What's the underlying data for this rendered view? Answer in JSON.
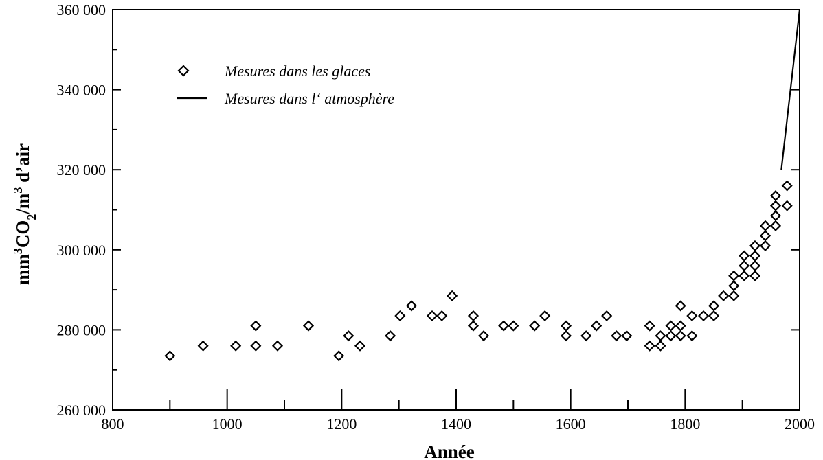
{
  "chart_data": {
    "type": "scatter",
    "title": "",
    "xlabel": "Année",
    "ylabel": {
      "parts": [
        {
          "text": "mm"
        },
        {
          "text": "3",
          "sup": true
        },
        {
          "text": "CO"
        },
        {
          "text": "2",
          "sub": true
        },
        {
          "text": "/m"
        },
        {
          "text": "3",
          "sup": true
        },
        {
          "text": " d’air"
        }
      ]
    },
    "xlim": [
      800,
      2000
    ],
    "ylim": [
      260000,
      360000
    ],
    "x_ticks": [
      800,
      1000,
      1200,
      1400,
      1600,
      1800,
      2000
    ],
    "x_tick_labels": [
      "800",
      "1000",
      "1200",
      "1400",
      "1600",
      "1800",
      "2000"
    ],
    "y_ticks": [
      260000,
      280000,
      300000,
      320000,
      340000,
      360000
    ],
    "y_tick_labels": [
      "260 000",
      "280 000",
      "300 000",
      "320 000",
      "340 000",
      "360 000"
    ],
    "grid": false,
    "legend_position": "top-left",
    "series": [
      {
        "name": "Mesures dans les glaces",
        "marker": "diamond",
        "points": [
          [
            900,
            273500
          ],
          [
            958,
            276000
          ],
          [
            1015,
            276000
          ],
          [
            1050,
            281000
          ],
          [
            1050,
            276000
          ],
          [
            1088,
            276000
          ],
          [
            1142,
            281000
          ],
          [
            1195,
            273500
          ],
          [
            1212,
            278500
          ],
          [
            1232,
            276000
          ],
          [
            1285,
            278500
          ],
          [
            1302,
            283500
          ],
          [
            1322,
            286000
          ],
          [
            1358,
            283500
          ],
          [
            1375,
            283500
          ],
          [
            1393,
            288500
          ],
          [
            1430,
            283500
          ],
          [
            1430,
            281000
          ],
          [
            1448,
            278500
          ],
          [
            1483,
            281000
          ],
          [
            1500,
            281000
          ],
          [
            1537,
            281000
          ],
          [
            1555,
            283500
          ],
          [
            1592,
            281000
          ],
          [
            1592,
            278500
          ],
          [
            1627,
            278500
          ],
          [
            1645,
            281000
          ],
          [
            1663,
            283500
          ],
          [
            1680,
            278500
          ],
          [
            1698,
            278500
          ],
          [
            1738,
            281000
          ],
          [
            1738,
            276000
          ],
          [
            1757,
            276000
          ],
          [
            1757,
            278500
          ],
          [
            1775,
            278500
          ],
          [
            1775,
            281000
          ],
          [
            1792,
            286000
          ],
          [
            1792,
            281000
          ],
          [
            1792,
            278500
          ],
          [
            1812,
            278500
          ],
          [
            1812,
            283500
          ],
          [
            1832,
            283500
          ],
          [
            1850,
            283500
          ],
          [
            1850,
            286000
          ],
          [
            1867,
            288500
          ],
          [
            1885,
            288500
          ],
          [
            1885,
            291000
          ],
          [
            1885,
            293500
          ],
          [
            1903,
            293500
          ],
          [
            1903,
            296000
          ],
          [
            1903,
            298500
          ],
          [
            1922,
            293500
          ],
          [
            1922,
            296000
          ],
          [
            1922,
            298500
          ],
          [
            1922,
            301000
          ],
          [
            1940,
            301000
          ],
          [
            1940,
            303500
          ],
          [
            1940,
            306000
          ],
          [
            1958,
            306000
          ],
          [
            1958,
            308500
          ],
          [
            1958,
            311000
          ],
          [
            1958,
            313500
          ],
          [
            1978,
            311000
          ],
          [
            1978,
            316000
          ]
        ]
      },
      {
        "name": "Mesures dans l‘ atmosphère",
        "marker": "line",
        "points": [
          [
            1968,
            320000
          ],
          [
            2000,
            360000
          ]
        ]
      }
    ]
  }
}
